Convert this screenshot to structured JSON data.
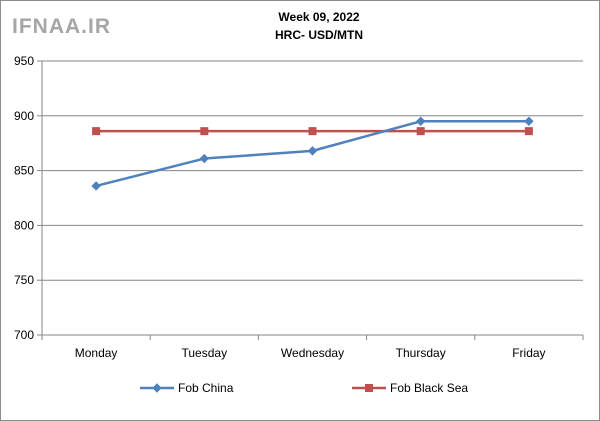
{
  "logo_text": "IFNAA.IR",
  "chart_data": {
    "type": "line",
    "title": "Week 09, 2022",
    "subtitle": "HRC- USD/MTN",
    "categories": [
      "Monday",
      "Tuesday",
      "Wednesday",
      "Thursday",
      "Friday"
    ],
    "series": [
      {
        "name": "Fob China",
        "values": [
          836,
          861,
          868,
          895,
          895
        ],
        "color": "#4f81bd",
        "marker": "diamond"
      },
      {
        "name": "Fob Black Sea",
        "values": [
          886,
          886,
          886,
          886,
          886
        ],
        "color": "#c0504d",
        "marker": "square"
      }
    ],
    "ylim": [
      700,
      950
    ],
    "yticks": [
      700,
      750,
      800,
      850,
      900,
      950
    ],
    "grid": true,
    "legend_position": "bottom"
  }
}
